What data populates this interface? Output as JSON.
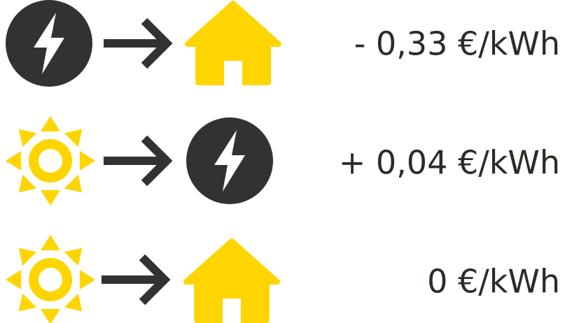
{
  "rows": [
    {
      "price": "- 0,33 €/kWh"
    },
    {
      "price": "+ 0,04 €/kWh"
    },
    {
      "price": "0 €/kWh"
    }
  ]
}
